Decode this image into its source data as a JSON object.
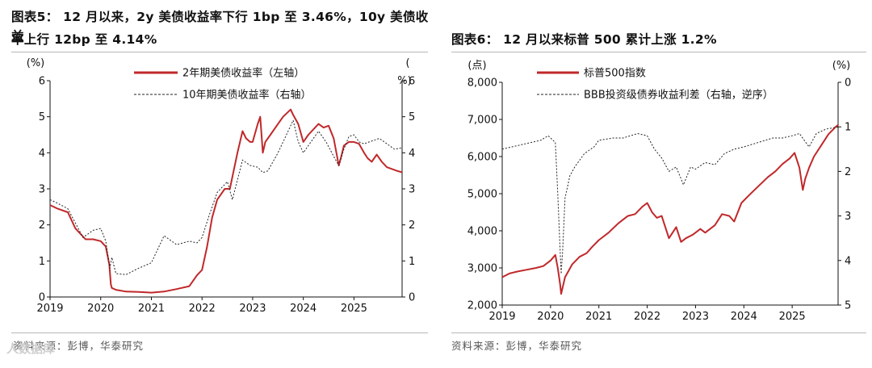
{
  "charts": {
    "left": {
      "title_line1": "图表5：  12 月以来，2y 美债收益率下行 1bp 至 3.46%，10y 美债收益",
      "title_line2": "率上行 12bp 至 4.14%",
      "source": "资料来源：彭博，华泰研究"
    },
    "right": {
      "title": "图表6：  12 月以来标普 500 累计上涨 1.2%",
      "source": "资料来源：彭博，华泰研究"
    }
  },
  "watermark": "人数据库",
  "chart_data": [
    {
      "type": "line",
      "title": "12 月以来，2y 美债收益率下行 1bp 至 3.46%，10y 美债收益率上行 12bp 至 4.14%",
      "x_tick_labels": [
        "2019",
        "2020",
        "2021",
        "2022",
        "2023",
        "2024",
        "2025"
      ],
      "x_ticks": [
        2019,
        2020,
        2021,
        2022,
        2023,
        2024,
        2025
      ],
      "xlim": [
        2019,
        2025.95
      ],
      "left_axis": {
        "unit": "(%)",
        "ylim": [
          0,
          6
        ],
        "ticks": [
          0,
          1,
          2,
          3,
          4,
          5,
          6
        ]
      },
      "right_axis": {
        "unit": "(%)",
        "unit_top": "(",
        "unit_bottom": "%)",
        "ylim": [
          0,
          6
        ],
        "ticks": [
          0,
          1,
          2,
          3,
          4,
          5,
          6
        ]
      },
      "series": [
        {
          "name": "2年期美债收益率（左轴）",
          "axis": "left",
          "color": "#c0282a",
          "style": "solid",
          "x": [
            2019.0,
            2019.15,
            2019.35,
            2019.5,
            2019.7,
            2019.85,
            2020.0,
            2020.1,
            2020.17,
            2020.2,
            2020.22,
            2020.3,
            2020.5,
            2020.75,
            2021.0,
            2021.25,
            2021.5,
            2021.75,
            2021.9,
            2022.0,
            2022.1,
            2022.2,
            2022.3,
            2022.45,
            2022.55,
            2022.7,
            2022.8,
            2022.87,
            2022.95,
            2023.0,
            2023.1,
            2023.15,
            2023.2,
            2023.25,
            2023.35,
            2023.5,
            2023.6,
            2023.75,
            2023.8,
            2023.9,
            2024.0,
            2024.1,
            2024.3,
            2024.4,
            2024.5,
            2024.6,
            2024.7,
            2024.75,
            2024.8,
            2024.9,
            2025.0,
            2025.1,
            2025.2,
            2025.27,
            2025.35,
            2025.45,
            2025.55,
            2025.65,
            2025.75,
            2025.85,
            2025.95
          ],
          "y": [
            2.55,
            2.45,
            2.35,
            1.9,
            1.6,
            1.6,
            1.55,
            1.4,
            0.9,
            0.35,
            0.25,
            0.2,
            0.15,
            0.14,
            0.12,
            0.15,
            0.22,
            0.3,
            0.6,
            0.75,
            1.4,
            2.2,
            2.7,
            3.0,
            3.0,
            4.0,
            4.6,
            4.4,
            4.3,
            4.3,
            4.8,
            5.0,
            4.0,
            4.3,
            4.5,
            4.8,
            5.0,
            5.2,
            5.05,
            4.8,
            4.3,
            4.5,
            4.8,
            4.7,
            4.75,
            4.4,
            3.65,
            3.9,
            4.2,
            4.3,
            4.3,
            4.25,
            4.0,
            3.85,
            3.75,
            3.95,
            3.75,
            3.6,
            3.55,
            3.5,
            3.46
          ]
        },
        {
          "name": "10年期美债收益率（右轴）",
          "axis": "right",
          "color": "#222222",
          "style": "dashed",
          "x": [
            2019.0,
            2019.15,
            2019.35,
            2019.5,
            2019.65,
            2019.85,
            2020.0,
            2020.1,
            2020.18,
            2020.22,
            2020.3,
            2020.5,
            2020.75,
            2021.0,
            2021.15,
            2021.25,
            2021.5,
            2021.75,
            2021.9,
            2022.0,
            2022.15,
            2022.3,
            2022.5,
            2022.6,
            2022.8,
            2022.95,
            2023.1,
            2023.2,
            2023.3,
            2023.5,
            2023.6,
            2023.8,
            2023.9,
            2024.0,
            2024.1,
            2024.3,
            2024.45,
            2024.6,
            2024.7,
            2024.8,
            2024.9,
            2025.0,
            2025.1,
            2025.2,
            2025.3,
            2025.5,
            2025.65,
            2025.8,
            2025.95
          ],
          "y": [
            2.7,
            2.6,
            2.45,
            2.05,
            1.65,
            1.85,
            1.9,
            1.55,
            0.8,
            1.1,
            0.65,
            0.62,
            0.8,
            0.95,
            1.4,
            1.7,
            1.45,
            1.55,
            1.5,
            1.65,
            2.3,
            2.9,
            3.2,
            2.7,
            3.8,
            3.65,
            3.6,
            3.45,
            3.5,
            4.0,
            4.3,
            4.9,
            4.3,
            4.0,
            4.2,
            4.6,
            4.3,
            3.9,
            3.65,
            4.1,
            4.45,
            4.5,
            4.3,
            4.25,
            4.3,
            4.4,
            4.25,
            4.1,
            4.14
          ]
        }
      ]
    },
    {
      "type": "line",
      "title": "12 月以来标普 500 累计上涨 1.2%",
      "x_tick_labels": [
        "2019",
        "2020",
        "2021",
        "2022",
        "2023",
        "2024",
        "2025"
      ],
      "x_ticks": [
        2019,
        2020,
        2021,
        2022,
        2023,
        2024,
        2025
      ],
      "xlim": [
        2019,
        2025.95
      ],
      "left_axis": {
        "unit": "(点)",
        "ylim": [
          2000,
          8000
        ],
        "ticks": [
          2000,
          3000,
          4000,
          5000,
          6000,
          7000,
          8000
        ],
        "tick_labels": [
          "2,000",
          "3,000",
          "4,000",
          "5,000",
          "6,000",
          "7,000",
          "8,000"
        ]
      },
      "right_axis": {
        "unit": "(%)",
        "ylim": [
          0,
          5
        ],
        "inverted": true,
        "ticks": [
          0,
          1,
          2,
          3,
          4,
          5
        ]
      },
      "series": [
        {
          "name": "标普500指数",
          "axis": "left",
          "color": "#c0282a",
          "style": "solid",
          "x": [
            2019.0,
            2019.15,
            2019.3,
            2019.5,
            2019.7,
            2019.85,
            2020.0,
            2020.1,
            2020.15,
            2020.2,
            2020.22,
            2020.3,
            2020.45,
            2020.6,
            2020.75,
            2020.85,
            2021.0,
            2021.2,
            2021.4,
            2021.6,
            2021.75,
            2021.9,
            2022.0,
            2022.1,
            2022.2,
            2022.3,
            2022.45,
            2022.6,
            2022.7,
            2022.8,
            2022.95,
            2023.1,
            2023.2,
            2023.4,
            2023.55,
            2023.7,
            2023.8,
            2023.95,
            2024.1,
            2024.3,
            2024.5,
            2024.65,
            2024.8,
            2024.95,
            2025.05,
            2025.15,
            2025.22,
            2025.27,
            2025.35,
            2025.45,
            2025.6,
            2025.75,
            2025.9,
            2025.95
          ],
          "y": [
            2750,
            2850,
            2900,
            2950,
            3000,
            3050,
            3200,
            3350,
            3000,
            2550,
            2300,
            2750,
            3100,
            3300,
            3400,
            3550,
            3750,
            3950,
            4200,
            4400,
            4450,
            4650,
            4750,
            4500,
            4350,
            4400,
            3800,
            4100,
            3700,
            3800,
            3900,
            4050,
            3950,
            4150,
            4450,
            4400,
            4250,
            4750,
            4950,
            5200,
            5450,
            5600,
            5800,
            5950,
            6100,
            5700,
            5100,
            5400,
            5700,
            6000,
            6300,
            6600,
            6800,
            6850
          ]
        },
        {
          "name": "BBB投资级债券收益利差（右轴，逆序）",
          "axis": "right",
          "color": "#222222",
          "style": "dashed",
          "x": [
            2019.0,
            2019.2,
            2019.4,
            2019.6,
            2019.8,
            2019.95,
            2020.1,
            2020.15,
            2020.2,
            2020.22,
            2020.25,
            2020.3,
            2020.4,
            2020.5,
            2020.7,
            2020.9,
            2021.0,
            2021.3,
            2021.5,
            2021.8,
            2022.0,
            2022.15,
            2022.3,
            2022.45,
            2022.6,
            2022.75,
            2022.9,
            2023.0,
            2023.2,
            2023.4,
            2023.6,
            2023.8,
            2024.0,
            2024.3,
            2024.6,
            2024.8,
            2025.0,
            2025.15,
            2025.25,
            2025.35,
            2025.5,
            2025.7,
            2025.95
          ],
          "y": [
            1.5,
            1.45,
            1.4,
            1.35,
            1.3,
            1.2,
            1.35,
            2.5,
            3.8,
            4.3,
            3.8,
            2.6,
            2.1,
            1.9,
            1.6,
            1.45,
            1.3,
            1.25,
            1.25,
            1.15,
            1.2,
            1.5,
            1.7,
            2.0,
            1.9,
            2.3,
            1.9,
            1.95,
            1.8,
            1.85,
            1.6,
            1.5,
            1.45,
            1.35,
            1.25,
            1.25,
            1.2,
            1.15,
            1.3,
            1.45,
            1.15,
            1.05,
            1.0
          ]
        }
      ]
    }
  ]
}
